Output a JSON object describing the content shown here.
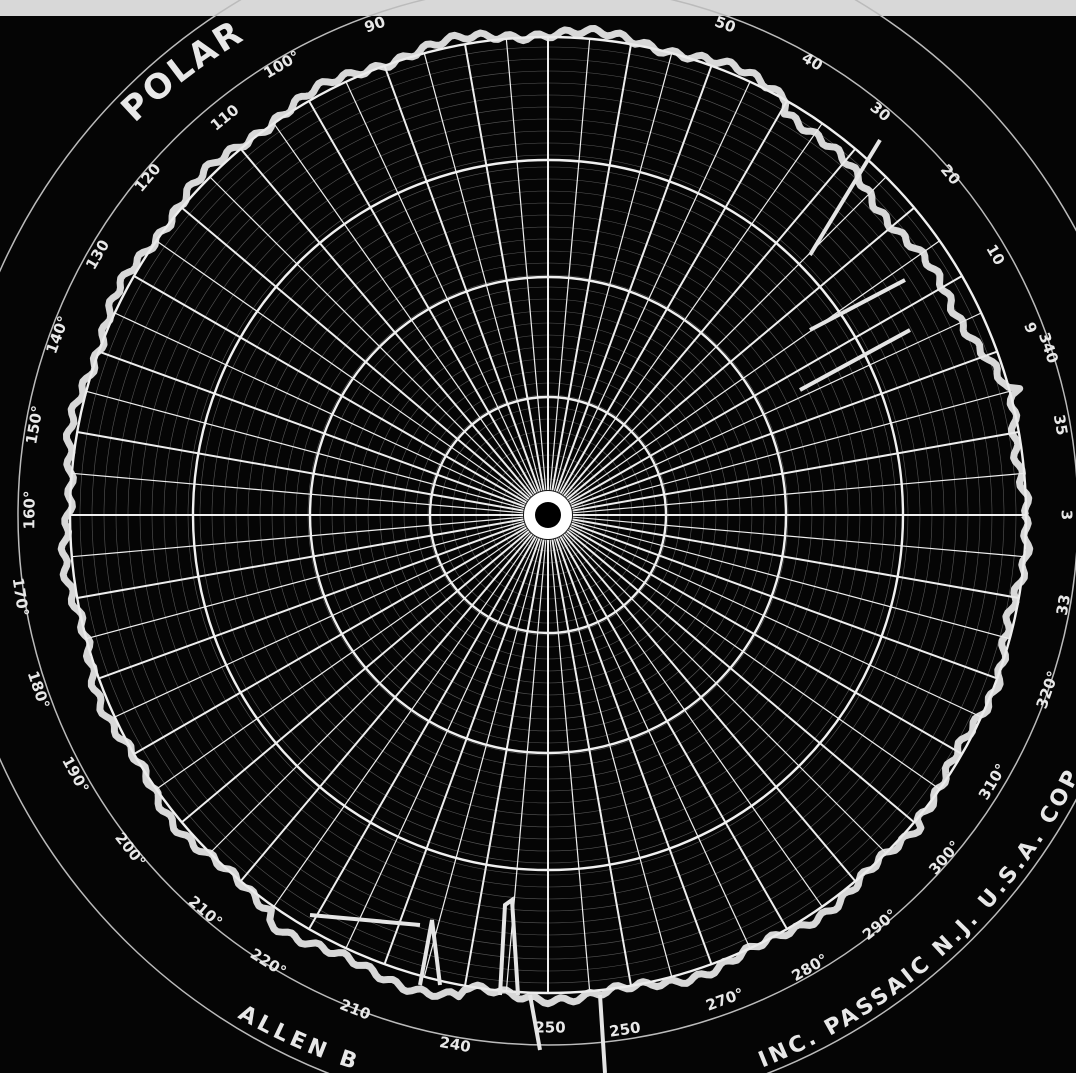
{
  "title": "POLAR C",
  "angle_labels": [
    "90",
    "50",
    "40",
    "30",
    "20",
    "10",
    "9",
    "340",
    "35",
    "3",
    "33",
    "320°",
    "310°",
    "300°",
    "290°",
    "280°",
    "270°",
    "250",
    "250",
    "240",
    "210",
    "220°",
    "210°",
    "200°",
    "190°",
    "180°",
    "170°",
    "160°",
    "150°",
    "140°",
    "130",
    "120",
    "110",
    "100°"
  ],
  "maker": "ALLEN B",
  "imprint": "INC. PASSAIC N.J. U.S.A. COPYRIGHT"
}
